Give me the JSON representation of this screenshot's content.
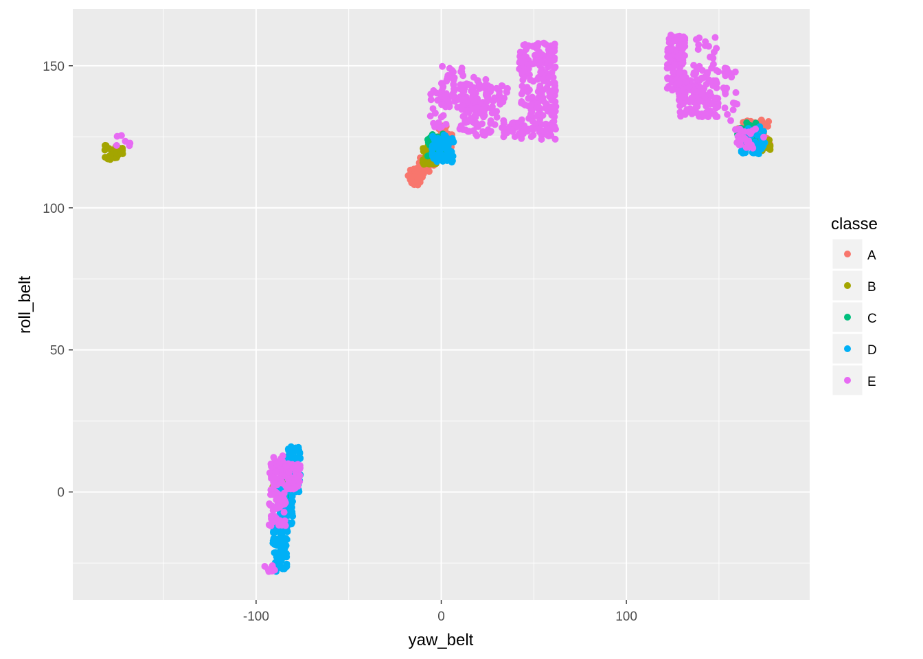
{
  "chart_data": {
    "type": "scatter",
    "title": "",
    "xlabel": "yaw_belt",
    "ylabel": "roll_belt",
    "xlim": [
      -199,
      199
    ],
    "ylim": [
      -38,
      170
    ],
    "x_ticks": [
      -100,
      0,
      100
    ],
    "x_tick_labels": [
      "-100",
      "0",
      "100"
    ],
    "y_ticks": [
      0,
      50,
      100,
      150
    ],
    "y_tick_labels": [
      "0",
      "50",
      "100",
      "150"
    ],
    "grid": true,
    "legend": {
      "title": "classe",
      "position": "right"
    },
    "colors": {
      "A": "#F8766D",
      "B": "#A3A500",
      "C": "#00BF7D",
      "D": "#00B0F6",
      "E": "#E76BF3"
    },
    "panel_background": "#EBEBEB",
    "series": [
      {
        "name": "A",
        "clusters": [
          {
            "x0": -18,
            "x1": -10,
            "y0": 108,
            "y1": 114,
            "n": 40
          },
          {
            "x0": -12,
            "x1": -4,
            "y0": 112,
            "y1": 118,
            "n": 30
          },
          {
            "x0": -2,
            "x1": 6,
            "y0": 118,
            "y1": 129,
            "n": 25
          },
          {
            "x0": 160,
            "x1": 178,
            "y0": 122,
            "y1": 131,
            "n": 40
          }
        ]
      },
      {
        "name": "B",
        "clusters": [
          {
            "x0": -182,
            "x1": -172,
            "y0": 117,
            "y1": 122,
            "n": 35
          },
          {
            "x0": -10,
            "x1": -2,
            "y0": 115,
            "y1": 122,
            "n": 35
          },
          {
            "x0": 168,
            "x1": 178,
            "y0": 120,
            "y1": 124,
            "n": 25
          },
          {
            "x0": -91,
            "x1": -79,
            "y0": 0,
            "y1": 5,
            "n": 20
          }
        ]
      },
      {
        "name": "C",
        "clusters": [
          {
            "x0": -8,
            "x1": 2,
            "y0": 117,
            "y1": 126,
            "n": 30
          },
          {
            "x0": 160,
            "x1": 170,
            "y0": 124,
            "y1": 130,
            "n": 25
          },
          {
            "x0": -90,
            "x1": -80,
            "y0": -2,
            "y1": 6,
            "n": 15
          }
        ]
      },
      {
        "name": "D",
        "clusters": [
          {
            "x0": -5,
            "x1": 7,
            "y0": 116,
            "y1": 126,
            "n": 60
          },
          {
            "x0": 162,
            "x1": 175,
            "y0": 119,
            "y1": 129,
            "n": 50
          },
          {
            "x0": -91,
            "x1": -83,
            "y0": -28,
            "y1": -10,
            "n": 80
          },
          {
            "x0": -88,
            "x1": -80,
            "y0": -12,
            "y1": 3,
            "n": 80
          },
          {
            "x0": -83,
            "x1": -76,
            "y0": 0,
            "y1": 16,
            "n": 80
          }
        ]
      },
      {
        "name": "E",
        "clusters": [
          {
            "x0": -176,
            "x1": -168,
            "y0": 121,
            "y1": 126,
            "n": 6
          },
          {
            "x0": -96,
            "x1": -90,
            "y0": -28,
            "y1": -25,
            "n": 10
          },
          {
            "x0": -93,
            "x1": -84,
            "y0": -12,
            "y1": 13,
            "n": 110
          },
          {
            "x0": -84,
            "x1": -76,
            "y0": 1,
            "y1": 10,
            "n": 50
          },
          {
            "x0": -7,
            "x1": 3,
            "y0": 128,
            "y1": 142,
            "n": 20
          },
          {
            "x0": 0,
            "x1": 12,
            "y0": 135,
            "y1": 150,
            "n": 40
          },
          {
            "x0": 10,
            "x1": 27,
            "y0": 125,
            "y1": 146,
            "n": 120
          },
          {
            "x0": 27,
            "x1": 38,
            "y0": 128,
            "y1": 143,
            "n": 25
          },
          {
            "x0": 33,
            "x1": 45,
            "y0": 125,
            "y1": 130,
            "n": 25
          },
          {
            "x0": 42,
            "x1": 62,
            "y0": 124,
            "y1": 158,
            "n": 220
          },
          {
            "x0": 122,
            "x1": 132,
            "y0": 140,
            "y1": 161,
            "n": 120
          },
          {
            "x0": 128,
            "x1": 150,
            "y0": 132,
            "y1": 146,
            "n": 120
          },
          {
            "x0": 135,
            "x1": 150,
            "y0": 145,
            "y1": 160,
            "n": 25
          },
          {
            "x0": 152,
            "x1": 160,
            "y0": 130,
            "y1": 150,
            "n": 20
          },
          {
            "x0": 158,
            "x1": 175,
            "y0": 121,
            "y1": 128,
            "n": 25
          }
        ]
      }
    ]
  }
}
